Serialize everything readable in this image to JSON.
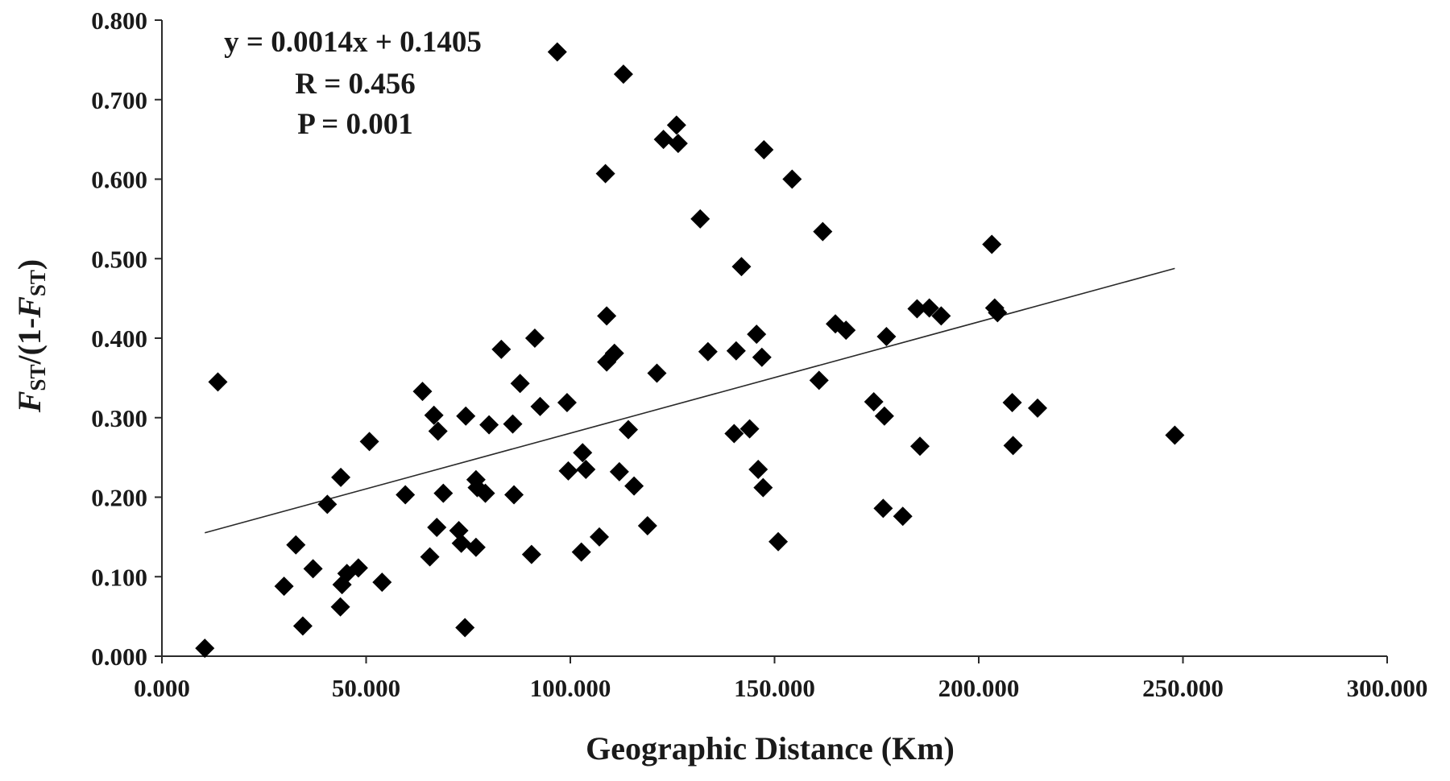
{
  "chart_data": {
    "type": "scatter",
    "xlabel": "Geographic Distance (Km)",
    "ylabel": {
      "f1": "F",
      "sub1": "ST",
      "mid": "/(1-",
      "f2": "F",
      "sub2": "ST",
      "end": ")"
    },
    "xlim": [
      0,
      300
    ],
    "ylim": [
      0,
      0.8
    ],
    "x_ticks": [
      0,
      50,
      100,
      150,
      200,
      250,
      300
    ],
    "y_ticks": [
      0,
      0.1,
      0.2,
      0.3,
      0.4,
      0.5,
      0.6,
      0.7,
      0.8
    ],
    "x_tick_labels": [
      "0.000",
      "50.000",
      "100.000",
      "150.000",
      "200.000",
      "250.000",
      "300.000"
    ],
    "y_tick_labels": [
      "0.000",
      "0.100",
      "0.200",
      "0.300",
      "0.400",
      "0.500",
      "0.600",
      "0.700",
      "0.800"
    ],
    "grid": false,
    "legend": "none",
    "marker": "diamond",
    "annotations": {
      "equation": "y = 0.0014x + 0.1405",
      "r": "R = 0.456",
      "p": "P = 0.001"
    },
    "trendline": {
      "slope": 0.0014,
      "intercept": 0.1405,
      "x_range": [
        10.5,
        248
      ]
    },
    "points": [
      [
        10.5,
        0.01
      ],
      [
        13.7,
        0.345
      ],
      [
        29.9,
        0.088
      ],
      [
        32.8,
        0.14
      ],
      [
        34.5,
        0.038
      ],
      [
        37.0,
        0.11
      ],
      [
        40.5,
        0.191
      ],
      [
        43.8,
        0.225
      ],
      [
        43.7,
        0.062
      ],
      [
        44.1,
        0.09
      ],
      [
        45.3,
        0.104
      ],
      [
        48.1,
        0.111
      ],
      [
        50.8,
        0.27
      ],
      [
        53.9,
        0.093
      ],
      [
        59.6,
        0.203
      ],
      [
        63.8,
        0.333
      ],
      [
        65.6,
        0.125
      ],
      [
        66.6,
        0.303
      ],
      [
        67.3,
        0.162
      ],
      [
        67.6,
        0.283
      ],
      [
        68.9,
        0.205
      ],
      [
        72.7,
        0.158
      ],
      [
        73.3,
        0.142
      ],
      [
        74.4,
        0.302
      ],
      [
        74.2,
        0.036
      ],
      [
        76.9,
        0.137
      ],
      [
        76.9,
        0.222
      ],
      [
        77.2,
        0.212
      ],
      [
        79.2,
        0.205
      ],
      [
        80.1,
        0.291
      ],
      [
        83.1,
        0.386
      ],
      [
        85.9,
        0.292
      ],
      [
        86.2,
        0.203
      ],
      [
        87.7,
        0.343
      ],
      [
        90.5,
        0.128
      ],
      [
        91.3,
        0.4
      ],
      [
        92.6,
        0.314
      ],
      [
        96.8,
        0.76
      ],
      [
        99.2,
        0.319
      ],
      [
        99.5,
        0.233
      ],
      [
        102.7,
        0.131
      ],
      [
        103.0,
        0.256
      ],
      [
        103.8,
        0.235
      ],
      [
        107.1,
        0.15
      ],
      [
        108.6,
        0.607
      ],
      [
        108.9,
        0.428
      ],
      [
        108.9,
        0.37
      ],
      [
        110.8,
        0.381
      ],
      [
        112.0,
        0.232
      ],
      [
        113.0,
        0.732
      ],
      [
        114.2,
        0.285
      ],
      [
        115.6,
        0.214
      ],
      [
        118.9,
        0.164
      ],
      [
        121.2,
        0.356
      ],
      [
        122.8,
        0.65
      ],
      [
        126.0,
        0.668
      ],
      [
        126.4,
        0.645
      ],
      [
        131.8,
        0.55
      ],
      [
        133.7,
        0.383
      ],
      [
        140.1,
        0.28
      ],
      [
        140.6,
        0.384
      ],
      [
        141.9,
        0.49
      ],
      [
        143.9,
        0.286
      ],
      [
        145.6,
        0.405
      ],
      [
        146.0,
        0.235
      ],
      [
        146.9,
        0.376
      ],
      [
        147.2,
        0.212
      ],
      [
        147.4,
        0.637
      ],
      [
        150.9,
        0.144
      ],
      [
        154.3,
        0.6
      ],
      [
        160.9,
        0.347
      ],
      [
        161.8,
        0.534
      ],
      [
        164.9,
        0.418
      ],
      [
        167.5,
        0.41
      ],
      [
        174.3,
        0.32
      ],
      [
        176.6,
        0.186
      ],
      [
        176.9,
        0.302
      ],
      [
        177.4,
        0.402
      ],
      [
        181.4,
        0.176
      ],
      [
        184.9,
        0.437
      ],
      [
        185.6,
        0.264
      ],
      [
        187.9,
        0.438
      ],
      [
        190.8,
        0.428
      ],
      [
        203.2,
        0.518
      ],
      [
        203.9,
        0.438
      ],
      [
        204.6,
        0.432
      ],
      [
        208.2,
        0.319
      ],
      [
        208.4,
        0.265
      ],
      [
        214.4,
        0.312
      ],
      [
        248.0,
        0.278
      ]
    ]
  }
}
